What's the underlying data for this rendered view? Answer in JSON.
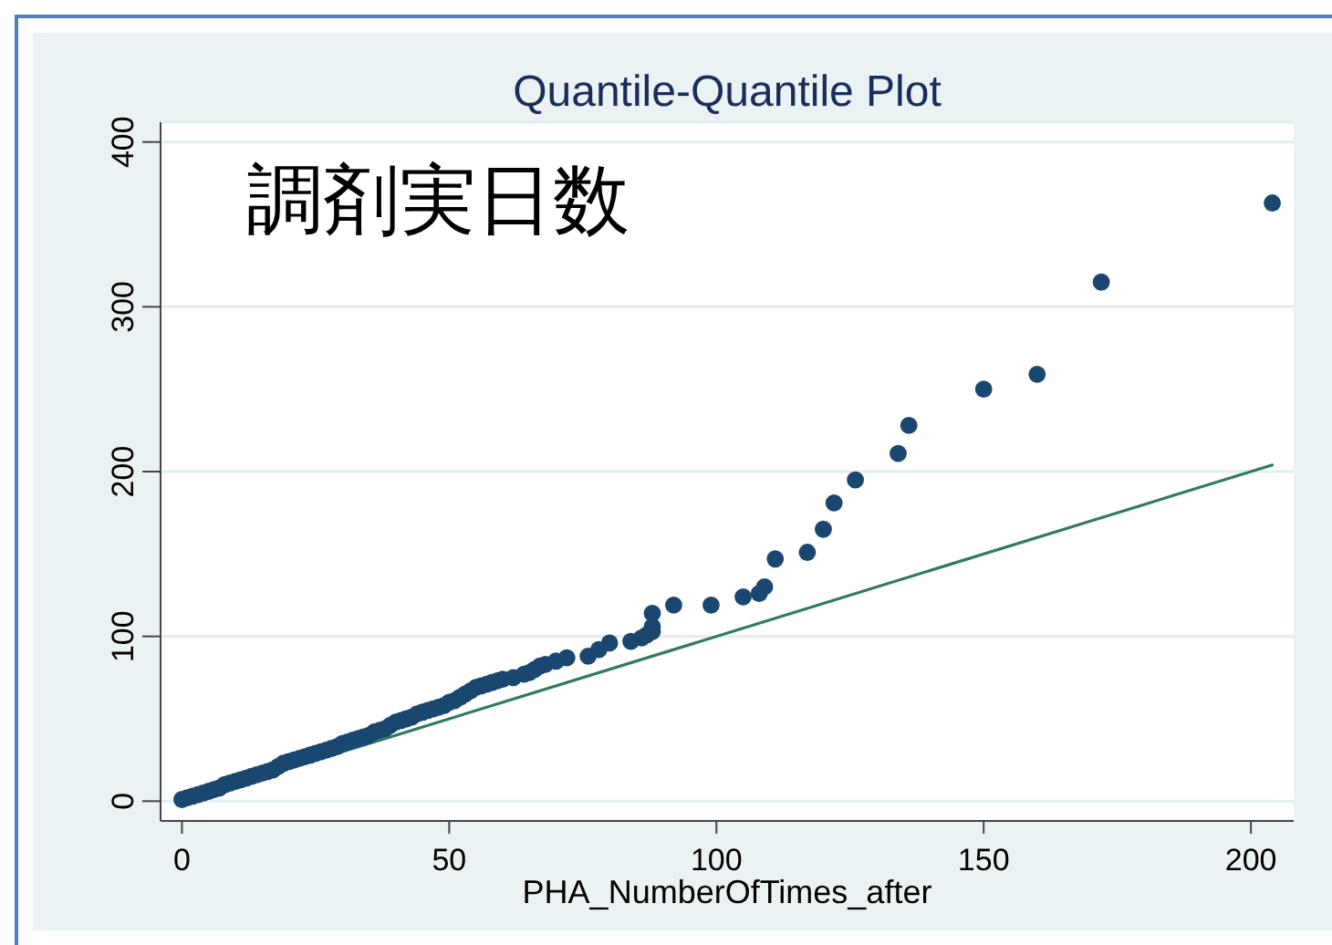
{
  "chart_data": {
    "type": "scatter",
    "title": "Quantile-Quantile Plot",
    "xlabel": "PHA_NumberOfTimes_after",
    "annotations": [
      "調剤実日数"
    ],
    "xlim": [
      -4,
      208
    ],
    "ylim": [
      -12,
      412
    ],
    "xticks": [
      0,
      50,
      100,
      150,
      200
    ],
    "yticks": [
      0,
      100,
      200,
      300,
      400
    ],
    "grid": "y",
    "marker": "circle",
    "series": [
      {
        "color": "#1a476f",
        "x": [
          0,
          1,
          2,
          3,
          4,
          5,
          6,
          7,
          8,
          9,
          10,
          11,
          12,
          13,
          14,
          15,
          16,
          17,
          18,
          19,
          20,
          21,
          22,
          23,
          24,
          25,
          26,
          27,
          28,
          29,
          30,
          31,
          32,
          33,
          34,
          35,
          36,
          37,
          38,
          39,
          40,
          41,
          42,
          43,
          44,
          45,
          46,
          47,
          48,
          49,
          50,
          51,
          52,
          53,
          54,
          55,
          56,
          57,
          58,
          59,
          60,
          62,
          64,
          65,
          66,
          67,
          68,
          70,
          72,
          76,
          78,
          80,
          84,
          86,
          87,
          88,
          88,
          88,
          92,
          99,
          105,
          108,
          109,
          111,
          117,
          120,
          122,
          126,
          134,
          136,
          150,
          160,
          172,
          204
        ],
        "values": [
          1,
          2,
          3,
          4,
          5,
          6,
          7,
          8,
          10,
          11,
          12,
          13,
          14,
          15,
          16,
          17,
          18,
          19,
          21,
          23,
          24,
          25,
          26,
          27,
          28,
          29,
          30,
          31,
          32,
          33,
          35,
          36,
          37,
          38,
          39,
          40,
          42,
          43,
          44,
          46,
          48,
          49,
          50,
          51,
          53,
          54,
          55,
          56,
          57,
          58,
          60,
          61,
          63,
          65,
          67,
          69,
          70,
          71,
          72,
          73,
          74,
          75,
          77,
          78,
          80,
          82,
          83,
          85,
          87,
          88,
          92,
          96,
          97,
          99,
          101,
          103,
          106,
          114,
          119,
          119,
          124,
          126,
          130,
          147,
          151,
          165,
          181,
          195,
          211,
          228,
          250,
          259,
          315,
          363
        ]
      },
      {
        "type": "line",
        "color": "#2e7b62",
        "marker": "none",
        "line_style": "solid",
        "x": [
          0,
          204
        ],
        "values": [
          0,
          204
        ]
      }
    ]
  }
}
